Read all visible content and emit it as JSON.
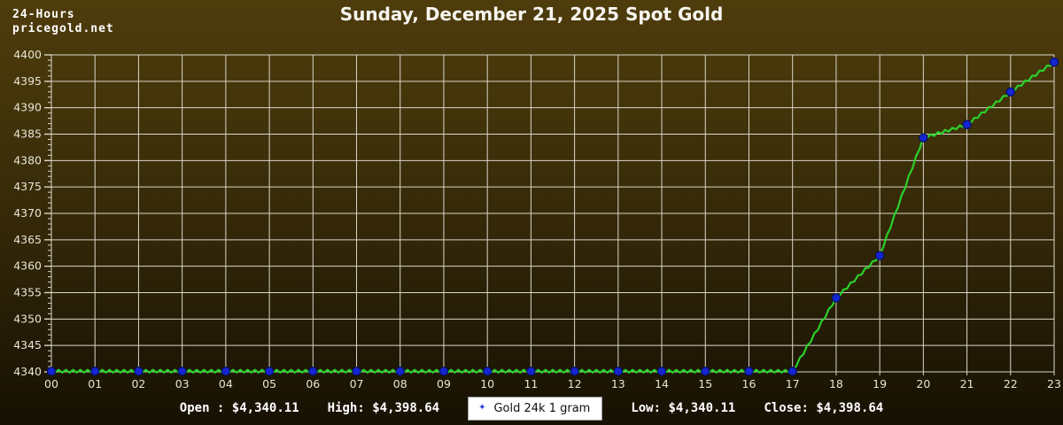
{
  "header": {
    "period": "24-Hours",
    "site": "pricegold.net",
    "title": "Sunday, December 21, 2025 Spot Gold"
  },
  "footer": {
    "open": "Open : $4,340.11",
    "high": "High: $4,398.64",
    "low": "Low: $4,340.11",
    "close": "Close: $4,398.64",
    "legend": {
      "marker": "✦",
      "label": "Gold 24k 1 gram"
    }
  },
  "chart_data": {
    "type": "line",
    "title": "Sunday, December 21, 2025 Spot Gold",
    "series_name": "Gold 24k 1 gram",
    "x_labels": [
      "00",
      "01",
      "02",
      "03",
      "04",
      "05",
      "06",
      "07",
      "08",
      "09",
      "10",
      "11",
      "12",
      "13",
      "14",
      "15",
      "16",
      "17",
      "18",
      "19",
      "20",
      "21",
      "22",
      "23"
    ],
    "values": [
      4340.11,
      4340.11,
      4340.11,
      4340.11,
      4340.11,
      4340.11,
      4340.11,
      4340.11,
      4340.11,
      4340.11,
      4340.11,
      4340.11,
      4340.11,
      4340.11,
      4340.11,
      4340.11,
      4340.11,
      4340.11,
      4354.0,
      4362.0,
      4384.3,
      4386.8,
      4393.0,
      4398.64
    ],
    "open": 4340.11,
    "high": 4398.64,
    "low": 4340.11,
    "close": 4398.64,
    "ylim": [
      4340,
      4400
    ],
    "y_tick_step": 5,
    "y_minor_step": 1,
    "grid": true,
    "legend_position": "bottom-center",
    "colors": {
      "line": "#2bd02b",
      "marker_fill": "#1526d0",
      "marker_edge": "#041066",
      "grid": "#dad6c8",
      "tick_label": "#e8e4d4",
      "background_top": "#4e3c0c",
      "background_bottom": "#171103"
    }
  }
}
